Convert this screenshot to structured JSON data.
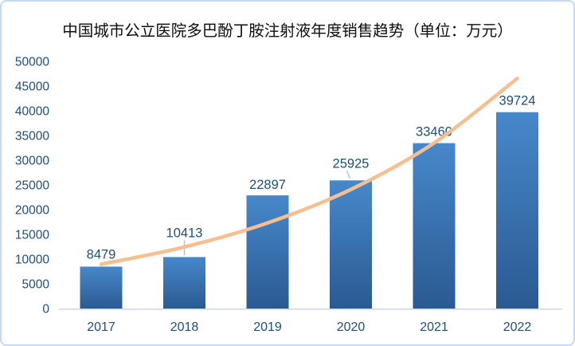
{
  "window": {
    "background": "#FFFFFF",
    "border_color": "#C5D9F1"
  },
  "chart_data": {
    "type": "bar",
    "title": "中国城市公立医院多巴酚丁胺注射液年度销售趋势（单位：万元）",
    "unit": "万元",
    "categories": [
      "2017",
      "2018",
      "2019",
      "2020",
      "2021",
      "2022"
    ],
    "values": [
      8479,
      10413,
      22897,
      25925,
      33460,
      39724
    ],
    "data_labels": [
      "8479",
      "10413",
      "22897",
      "25925",
      "33460",
      "39724"
    ],
    "ylim": [
      0,
      50000
    ],
    "ytick_step": 5000,
    "ytick_labels": [
      "0",
      "5000",
      "10000",
      "15000",
      "20000",
      "25000",
      "30000",
      "35000",
      "40000",
      "45000",
      "50000"
    ],
    "grid": false,
    "legend": false,
    "trendline": {
      "type": "exponential",
      "fitted_values": [
        8955,
        12452,
        17315,
        24077,
        33480,
        46555
      ],
      "color": "#F6BF90"
    },
    "colors": {
      "bar_gradient_top": "#4788CA",
      "bar_gradient_bottom": "#2A5A92",
      "label_text": "#1F4E7E",
      "axis_line": "#C9D6EC",
      "leader_line": "#A9C7E8",
      "title_text": "#0D0D0D"
    }
  }
}
